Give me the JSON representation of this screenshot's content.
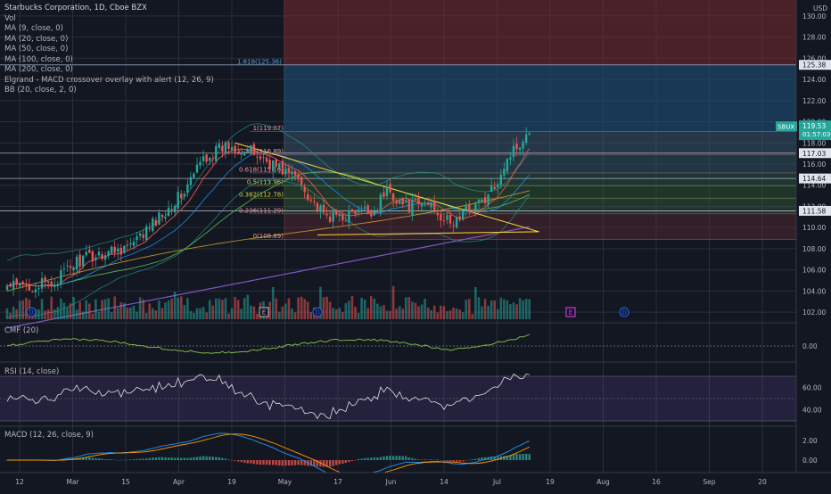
{
  "chart_data": {
    "type": "candlestick",
    "symbol": "SBUX",
    "title": "Starbucks Corporation, 1D, Cboe BZX",
    "currency": "USD",
    "indicators": [
      "Vol",
      "MA (9, close, 0)",
      "MA (20, close, 0)",
      "MA (50, close, 0)",
      "MA (100, close, 0)",
      "MA (200, close, 0)",
      "Elgrand - MACD crossover overlay with alert (12, 26, 9)",
      "BB (20, close, 2, 0)"
    ],
    "x_ticks": [
      "12",
      "Mar",
      "15",
      "Apr",
      "19",
      "May",
      "17",
      "Jun",
      "14",
      "Jul",
      "19",
      "Aug",
      "16",
      "Sep",
      "20"
    ],
    "y_ticks": [
      "102.00",
      "104.00",
      "106.00",
      "108.00",
      "110.00",
      "112.00",
      "114.00",
      "116.00",
      "118.00",
      "120.00",
      "122.00",
      "124.00",
      "126.00",
      "128.00",
      "130.00"
    ],
    "ylim": [
      101.5,
      130.5
    ],
    "last_price": {
      "symbol": "SBUX",
      "value": "119.53",
      "countdown": "01:57:03"
    },
    "price_levels": [
      {
        "value": 125.38,
        "label": "125.38"
      },
      {
        "value": 117.03,
        "label": "117.03"
      },
      {
        "value": 114.64,
        "label": "114.64"
      },
      {
        "value": 111.58,
        "label": "111.58"
      }
    ],
    "fib_levels": [
      {
        "ratio": "1",
        "value": 119.07,
        "label": "1(119.07)"
      },
      {
        "ratio": "0.786",
        "value": 116.89,
        "label": "0.786(116.89)"
      },
      {
        "ratio": "0.618",
        "value": 115.16,
        "label": "0.618(115.16)"
      },
      {
        "ratio": "0.5",
        "value": 113.96,
        "label": "0.5(113.96)"
      },
      {
        "ratio": "0.382",
        "value": 112.78,
        "label": "0.382(112.78)"
      },
      {
        "ratio": "0.236",
        "value": 111.29,
        "label": "0.236(111.29)"
      },
      {
        "ratio": "0",
        "value": 108.89,
        "label": "0(108.89)"
      },
      {
        "ratio": "1.618",
        "value": 125.36,
        "label": "1.618(125.36)"
      }
    ],
    "events": [
      "D",
      "E",
      "D",
      "E",
      "D"
    ],
    "panes": {
      "cmf": {
        "label": "CMF (20)",
        "ticks": [
          "0.00"
        ]
      },
      "rsi": {
        "label": "RSI (14, close)",
        "ticks": [
          "60.00",
          "40.00"
        ]
      },
      "macd": {
        "label": "MACD (12, 26, close, 9)",
        "ticks": [
          "2.00",
          "0.00"
        ]
      }
    },
    "grid": true,
    "colors": {
      "up": "#26a69a",
      "down": "#ef5350",
      "background": "#131722",
      "grid": "#2a2e39",
      "ma9": "#ef5350",
      "ma20": "#2196f3",
      "ma50": "#4caf50",
      "ma100": "#fbc02d",
      "ma200": "#7e57c2",
      "rsi": "#e1e1e1",
      "macd": "#2196f3",
      "signal": "#ff9800"
    }
  }
}
